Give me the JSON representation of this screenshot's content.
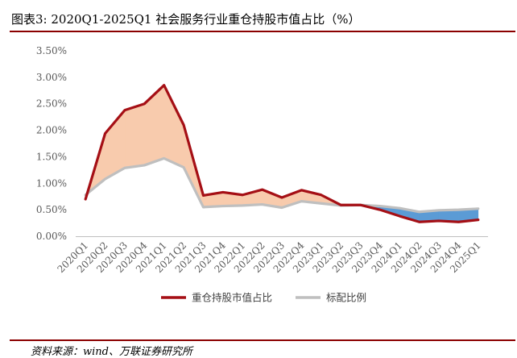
{
  "header": {
    "title": "图表3:  2020Q1-2025Q1 社会服务行业重仓持股市值占比（%）"
  },
  "footer": {
    "source": "资料来源：wind、万联证券研究所"
  },
  "colors": {
    "accent": "#8b0000",
    "series1": "#a50f15",
    "series2": "#bfbfbf",
    "fill_above": "#f8cbad",
    "fill_below": "#5b9bd5"
  },
  "chart_data": {
    "type": "line",
    "x": [
      "2020Q1",
      "2020Q2",
      "2020Q3",
      "2020Q4",
      "2021Q1",
      "2021Q2",
      "2021Q3",
      "2021Q4",
      "2022Q1",
      "2022Q2",
      "2022Q3",
      "2022Q4",
      "2023Q1",
      "2023Q2",
      "2023Q3",
      "2023Q4",
      "2024Q1",
      "2024Q2",
      "2024Q3",
      "2024Q4",
      "2025Q1"
    ],
    "series": [
      {
        "name": "重仓持股市值占比",
        "values": [
          0.7,
          1.94,
          2.38,
          2.5,
          2.85,
          2.1,
          0.77,
          0.83,
          0.78,
          0.88,
          0.73,
          0.87,
          0.78,
          0.59,
          0.59,
          0.5,
          0.38,
          0.27,
          0.29,
          0.27,
          0.31
        ]
      },
      {
        "name": "标配比例",
        "values": [
          0.78,
          1.08,
          1.29,
          1.34,
          1.47,
          1.3,
          0.55,
          0.57,
          0.58,
          0.6,
          0.54,
          0.66,
          0.62,
          0.58,
          0.59,
          0.57,
          0.53,
          0.46,
          0.49,
          0.5,
          0.52
        ]
      }
    ],
    "y_ticks": [
      "0.00%",
      "0.50%",
      "1.00%",
      "1.50%",
      "2.00%",
      "2.50%",
      "3.00%",
      "3.50%"
    ],
    "ylim": [
      0,
      3.5
    ],
    "title": "",
    "xlabel": "",
    "ylabel": "",
    "grid": false,
    "legend": "bottom-center"
  }
}
